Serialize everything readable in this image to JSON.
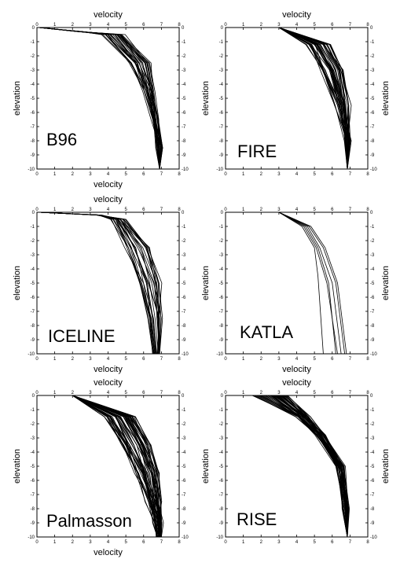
{
  "chart_data": [
    {
      "type": "line",
      "panel_label": "B96",
      "xlabel": "velocity",
      "ylabel": "elevation",
      "xlim": [
        0,
        8
      ],
      "ylim": [
        -10,
        0
      ],
      "xticks": [
        "0",
        "1",
        "2",
        "3",
        "4",
        "5",
        "6",
        "7",
        "8"
      ],
      "yticks": [
        "0",
        "-1",
        "-2",
        "-3",
        "-4",
        "-5",
        "-6",
        "-7",
        "-8",
        "-9",
        "-10"
      ],
      "grid": false,
      "profile_count": 30,
      "series": [
        {
          "x": [
            0.1,
            2.5,
            3.7,
            5.2,
            6.0,
            6.5,
            6.8,
            6.9
          ],
          "y": [
            0,
            -0.3,
            -0.5,
            -2.5,
            -4.5,
            -6.5,
            -8.5,
            -10
          ]
        },
        {
          "x": [
            0.1,
            2.5,
            4.2,
            5.6,
            6.2,
            6.6,
            6.85,
            6.9
          ],
          "y": [
            0,
            -0.3,
            -0.5,
            -2.5,
            -4.5,
            -6.5,
            -8.5,
            -10
          ]
        },
        {
          "x": [
            0.1,
            2.5,
            4.6,
            6.0,
            6.4,
            6.7,
            6.9,
            6.9
          ],
          "y": [
            0,
            -0.3,
            -0.5,
            -2.5,
            -4.5,
            -6.5,
            -8.5,
            -10
          ]
        },
        {
          "x": [
            0.1,
            2.5,
            4.8,
            6.3,
            6.6,
            6.8,
            6.9,
            6.9
          ],
          "y": [
            0,
            -0.3,
            -0.5,
            -2.5,
            -4.5,
            -6.5,
            -8.5,
            -10
          ]
        }
      ]
    },
    {
      "type": "line",
      "panel_label": "FIRE",
      "xlabel": "velocity",
      "ylabel": "elevation",
      "xlim": [
        0,
        8
      ],
      "ylim": [
        -10,
        0
      ],
      "xticks": [
        "0",
        "1",
        "2",
        "3",
        "4",
        "5",
        "6",
        "7",
        "8"
      ],
      "yticks": [
        "0",
        "-1",
        "-2",
        "-3",
        "-4",
        "-5",
        "-6",
        "-7",
        "-8",
        "-9",
        "-10"
      ],
      "grid": false,
      "profile_count": 40,
      "series": [
        {
          "x": [
            3.0,
            4.6,
            5.4,
            6.2,
            6.8,
            6.85
          ],
          "y": [
            0,
            -1.2,
            -3.0,
            -5.5,
            -8.0,
            -10
          ]
        },
        {
          "x": [
            3.0,
            5.0,
            5.8,
            6.5,
            6.85,
            6.85
          ],
          "y": [
            0,
            -1.2,
            -3.0,
            -5.5,
            -8.0,
            -10
          ]
        },
        {
          "x": [
            3.0,
            5.4,
            6.2,
            6.7,
            6.9,
            6.85
          ],
          "y": [
            0,
            -1.2,
            -3.0,
            -5.5,
            -8.0,
            -10
          ]
        },
        {
          "x": [
            3.0,
            5.8,
            6.6,
            6.9,
            6.9,
            6.85
          ],
          "y": [
            0,
            -1.2,
            -3.0,
            -5.5,
            -8.0,
            -10
          ]
        }
      ]
    },
    {
      "type": "line",
      "panel_label": "ICELINE",
      "xlabel": "velocity",
      "ylabel": "elevation",
      "xlim": [
        0,
        8
      ],
      "ylim": [
        -10,
        0
      ],
      "xticks": [
        "0",
        "1",
        "2",
        "3",
        "4",
        "5",
        "6",
        "7",
        "8"
      ],
      "yticks": [
        "0",
        "-1",
        "-2",
        "-3",
        "-4",
        "-5",
        "-6",
        "-7",
        "-8",
        "-9",
        "-10"
      ],
      "grid": false,
      "profile_count": 25,
      "series": [
        {
          "x": [
            0.1,
            3.5,
            4.3,
            5.0,
            5.8,
            6.3,
            6.5
          ],
          "y": [
            0,
            -0.2,
            -0.5,
            -2.5,
            -5.0,
            -7.5,
            -10
          ]
        },
        {
          "x": [
            0.1,
            3.5,
            4.5,
            5.4,
            6.1,
            6.6,
            6.7
          ],
          "y": [
            0,
            -0.2,
            -0.5,
            -2.5,
            -5.0,
            -7.5,
            -10
          ]
        },
        {
          "x": [
            0.1,
            3.5,
            4.7,
            5.9,
            6.6,
            6.9,
            6.9
          ],
          "y": [
            0,
            -0.2,
            -0.5,
            -2.5,
            -5.0,
            -7.5,
            -10
          ]
        },
        {
          "x": [
            0.1,
            3.5,
            4.9,
            6.4,
            6.9,
            6.9,
            6.9
          ],
          "y": [
            0,
            -0.2,
            -0.5,
            -2.5,
            -5.0,
            -7.5,
            -10
          ]
        }
      ]
    },
    {
      "type": "line",
      "panel_label": "KATLA",
      "xlabel": "velocity",
      "ylabel": "elevation",
      "xlim": [
        0,
        8
      ],
      "ylim": [
        -10,
        0
      ],
      "xticks": [
        "0",
        "1",
        "2",
        "3",
        "4",
        "5",
        "6",
        "7",
        "8"
      ],
      "yticks": [
        "0",
        "-1",
        "-2",
        "-3",
        "-4",
        "-5",
        "-6",
        "-7",
        "-8",
        "-9",
        "-10"
      ],
      "grid": false,
      "profile_count": 6,
      "series": [
        {
          "x": [
            3.0,
            4.3,
            5.0,
            5.2,
            5.5
          ],
          "y": [
            0,
            -1.0,
            -2.5,
            -4.5,
            -10
          ]
        },
        {
          "x": [
            3.0,
            4.5,
            5.2,
            5.8,
            6.2
          ],
          "y": [
            0,
            -1.0,
            -2.5,
            -5.0,
            -10
          ]
        },
        {
          "x": [
            3.0,
            4.4,
            5.1,
            5.7,
            6.3
          ],
          "y": [
            0,
            -1.0,
            -2.5,
            -5.0,
            -10
          ]
        },
        {
          "x": [
            3.0,
            4.6,
            5.3,
            6.0,
            6.5
          ],
          "y": [
            0,
            -1.0,
            -2.5,
            -5.0,
            -10
          ]
        },
        {
          "x": [
            3.0,
            4.7,
            5.5,
            6.2,
            6.7
          ],
          "y": [
            0,
            -1.0,
            -2.5,
            -5.0,
            -10
          ]
        },
        {
          "x": [
            3.0,
            4.8,
            5.6,
            6.3,
            6.8
          ],
          "y": [
            0,
            -1.0,
            -2.5,
            -5.0,
            -10
          ]
        }
      ]
    },
    {
      "type": "line",
      "panel_label": "Palmasson",
      "xlabel": "velocity",
      "ylabel": "elevation",
      "xlim": [
        0,
        8
      ],
      "ylim": [
        -10,
        0
      ],
      "xticks": [
        "0",
        "1",
        "2",
        "3",
        "4",
        "5",
        "6",
        "7",
        "8"
      ],
      "yticks": [
        "0",
        "-1",
        "-2",
        "-3",
        "-4",
        "-5",
        "-6",
        "-7",
        "-8",
        "-9",
        "-10"
      ],
      "grid": false,
      "profile_count": 50,
      "series": [
        {
          "x": [
            2.0,
            3.8,
            4.8,
            5.6,
            6.2,
            6.6,
            6.7
          ],
          "y": [
            0,
            -1.5,
            -3.5,
            -5.5,
            -7.5,
            -9.0,
            -10
          ]
        },
        {
          "x": [
            2.0,
            4.4,
            5.3,
            6.0,
            6.5,
            6.8,
            6.9
          ],
          "y": [
            0,
            -1.5,
            -3.5,
            -5.5,
            -7.5,
            -9.0,
            -10
          ]
        },
        {
          "x": [
            2.0,
            5.0,
            5.9,
            6.5,
            6.8,
            6.9,
            7.0
          ],
          "y": [
            0,
            -1.5,
            -3.5,
            -5.5,
            -7.5,
            -9.0,
            -10
          ]
        },
        {
          "x": [
            2.0,
            5.5,
            6.4,
            6.8,
            6.9,
            7.0,
            7.0
          ],
          "y": [
            0,
            -1.5,
            -3.5,
            -5.5,
            -7.5,
            -9.0,
            -10
          ]
        }
      ]
    },
    {
      "type": "line",
      "panel_label": "RISE",
      "xlabel": "velocity",
      "ylabel": "elevation",
      "xlim": [
        0,
        8
      ],
      "ylim": [
        -10,
        0
      ],
      "xticks": [
        "0",
        "1",
        "2",
        "3",
        "4",
        "5",
        "6",
        "7",
        "8"
      ],
      "yticks": [
        "0",
        "-1",
        "-2",
        "-3",
        "-4",
        "-5",
        "-6",
        "-7",
        "-8",
        "-9",
        "-10"
      ],
      "grid": false,
      "profile_count": 40,
      "series": [
        {
          "x": [
            1.5,
            4.0,
            5.2,
            6.3,
            6.7,
            6.85
          ],
          "y": [
            0,
            -1.5,
            -2.8,
            -5.0,
            -8.0,
            -10
          ]
        },
        {
          "x": [
            2.5,
            4.3,
            5.3,
            6.4,
            6.75,
            6.85
          ],
          "y": [
            0,
            -1.5,
            -2.8,
            -5.0,
            -8.0,
            -10
          ]
        },
        {
          "x": [
            3.0,
            4.5,
            5.4,
            6.5,
            6.8,
            6.85
          ],
          "y": [
            0,
            -1.5,
            -2.8,
            -5.0,
            -8.0,
            -10
          ]
        },
        {
          "x": [
            3.5,
            4.7,
            5.5,
            6.6,
            6.85,
            6.85
          ],
          "y": [
            0,
            -1.5,
            -2.8,
            -5.0,
            -8.0,
            -10
          ]
        }
      ]
    }
  ]
}
